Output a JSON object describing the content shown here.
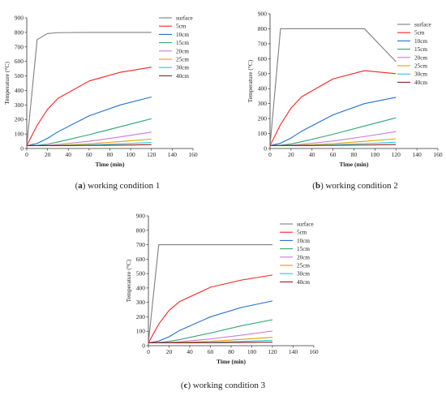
{
  "chart_data": [
    {
      "type": "line",
      "caption": {
        "letter": "a",
        "text": "working condition 1"
      },
      "xlabel": "Time (min)",
      "ylabel": "Temperature (°C)",
      "xlim": [
        0,
        160
      ],
      "ylim": [
        0,
        900
      ],
      "xticks": [
        0,
        20,
        40,
        60,
        80,
        100,
        120,
        140,
        160
      ],
      "yticks": [
        0,
        100,
        200,
        300,
        400,
        500,
        600,
        700,
        800,
        900
      ],
      "grid": false,
      "legend_position": "top-right",
      "series": [
        {
          "name": "surface",
          "color": "#7f7f7f",
          "x": [
            0,
            10,
            20,
            30,
            60,
            90,
            120
          ],
          "y": [
            20,
            750,
            792,
            798,
            800,
            800,
            800
          ]
        },
        {
          "name": "5cm",
          "color": "#ff2020",
          "x": [
            0,
            10,
            20,
            30,
            60,
            90,
            120
          ],
          "y": [
            20,
            160,
            270,
            345,
            465,
            525,
            560
          ]
        },
        {
          "name": "10cm",
          "color": "#1f6fd6",
          "x": [
            0,
            10,
            20,
            30,
            60,
            90,
            120
          ],
          "y": [
            20,
            35,
            70,
            115,
            225,
            300,
            355
          ]
        },
        {
          "name": "15cm",
          "color": "#2ca66f",
          "x": [
            0,
            10,
            20,
            30,
            60,
            90,
            120
          ],
          "y": [
            20,
            22,
            30,
            45,
            95,
            150,
            205
          ]
        },
        {
          "name": "20cm",
          "color": "#c97ad6",
          "x": [
            0,
            10,
            20,
            30,
            60,
            90,
            120
          ],
          "y": [
            20,
            20,
            22,
            28,
            50,
            80,
            113
          ]
        },
        {
          "name": "25cm",
          "color": "#e0a000",
          "x": [
            0,
            10,
            20,
            30,
            60,
            90,
            120
          ],
          "y": [
            20,
            20,
            20,
            22,
            32,
            48,
            65
          ]
        },
        {
          "name": "30cm",
          "color": "#20c8d8",
          "x": [
            0,
            10,
            20,
            30,
            60,
            90,
            120
          ],
          "y": [
            20,
            20,
            20,
            20,
            24,
            32,
            42
          ]
        },
        {
          "name": "40cm",
          "color": "#8b2020",
          "x": [
            0,
            10,
            20,
            30,
            60,
            90,
            120
          ],
          "y": [
            20,
            20,
            20,
            20,
            21,
            23,
            27
          ]
        }
      ]
    },
    {
      "type": "line",
      "caption": {
        "letter": "b",
        "text": "working condition 2"
      },
      "xlabel": "Time (min)",
      "ylabel": "Temperature (°C)",
      "xlim": [
        0,
        160
      ],
      "ylim": [
        0,
        900
      ],
      "xticks": [
        0,
        20,
        40,
        60,
        80,
        100,
        120,
        140,
        160
      ],
      "yticks": [
        0,
        100,
        200,
        300,
        400,
        500,
        600,
        700,
        800,
        900
      ],
      "grid": false,
      "legend_position": "top-right",
      "series": [
        {
          "name": "surface",
          "color": "#7f7f7f",
          "x": [
            0,
            10,
            20,
            60,
            90,
            120
          ],
          "y": [
            20,
            800,
            800,
            800,
            800,
            580
          ]
        },
        {
          "name": "5cm",
          "color": "#ff2020",
          "x": [
            0,
            10,
            20,
            30,
            60,
            90,
            120
          ],
          "y": [
            20,
            160,
            270,
            345,
            465,
            520,
            500
          ]
        },
        {
          "name": "10cm",
          "color": "#1f6fd6",
          "x": [
            0,
            10,
            20,
            30,
            60,
            90,
            120
          ],
          "y": [
            20,
            35,
            70,
            115,
            225,
            300,
            342
          ]
        },
        {
          "name": "15cm",
          "color": "#2ca66f",
          "x": [
            0,
            10,
            20,
            30,
            60,
            90,
            120
          ],
          "y": [
            20,
            22,
            30,
            45,
            95,
            150,
            205
          ]
        },
        {
          "name": "20cm",
          "color": "#c97ad6",
          "x": [
            0,
            10,
            20,
            30,
            60,
            90,
            120
          ],
          "y": [
            20,
            20,
            22,
            28,
            50,
            80,
            113
          ]
        },
        {
          "name": "25cm",
          "color": "#e0a000",
          "x": [
            0,
            10,
            20,
            30,
            60,
            90,
            120
          ],
          "y": [
            20,
            20,
            20,
            22,
            32,
            48,
            65
          ]
        },
        {
          "name": "30cm",
          "color": "#20c8d8",
          "x": [
            0,
            10,
            20,
            30,
            60,
            90,
            120
          ],
          "y": [
            20,
            20,
            20,
            20,
            24,
            32,
            42
          ]
        },
        {
          "name": "40cm",
          "color": "#8b2020",
          "x": [
            0,
            10,
            20,
            30,
            60,
            90,
            120
          ],
          "y": [
            20,
            20,
            20,
            20,
            21,
            23,
            27
          ]
        }
      ]
    },
    {
      "type": "line",
      "caption": {
        "letter": "c",
        "text": "working condition 3"
      },
      "xlabel": "Time (min)",
      "ylabel": "Temperature (°C)",
      "xlim": [
        0,
        160
      ],
      "ylim": [
        0,
        900
      ],
      "xticks": [
        0,
        20,
        40,
        60,
        80,
        100,
        120,
        140,
        160
      ],
      "yticks": [
        0,
        100,
        200,
        300,
        400,
        500,
        600,
        700,
        800,
        900
      ],
      "grid": false,
      "legend_position": "top-right",
      "series": [
        {
          "name": "surface",
          "color": "#7f7f7f",
          "x": [
            0,
            10,
            20,
            60,
            90,
            120
          ],
          "y": [
            20,
            700,
            700,
            700,
            700,
            700
          ]
        },
        {
          "name": "5cm",
          "color": "#ff2020",
          "x": [
            0,
            10,
            20,
            30,
            60,
            90,
            120
          ],
          "y": [
            20,
            150,
            245,
            305,
            405,
            455,
            490
          ]
        },
        {
          "name": "10cm",
          "color": "#1f6fd6",
          "x": [
            0,
            10,
            20,
            30,
            60,
            90,
            120
          ],
          "y": [
            20,
            32,
            62,
            105,
            200,
            265,
            310
          ]
        },
        {
          "name": "15cm",
          "color": "#2ca66f",
          "x": [
            0,
            10,
            20,
            30,
            60,
            90,
            120
          ],
          "y": [
            20,
            22,
            30,
            42,
            88,
            138,
            180
          ]
        },
        {
          "name": "20cm",
          "color": "#c97ad6",
          "x": [
            0,
            10,
            20,
            30,
            60,
            90,
            120
          ],
          "y": [
            20,
            20,
            22,
            27,
            47,
            73,
            102
          ]
        },
        {
          "name": "25cm",
          "color": "#e0a000",
          "x": [
            0,
            10,
            20,
            30,
            60,
            90,
            120
          ],
          "y": [
            20,
            20,
            20,
            22,
            30,
            44,
            58
          ]
        },
        {
          "name": "30cm",
          "color": "#20c8d8",
          "x": [
            0,
            10,
            20,
            30,
            60,
            90,
            120
          ],
          "y": [
            20,
            20,
            20,
            20,
            23,
            29,
            38
          ]
        },
        {
          "name": "40cm",
          "color": "#8b2020",
          "x": [
            0,
            10,
            20,
            30,
            60,
            90,
            120
          ],
          "y": [
            20,
            20,
            20,
            20,
            21,
            22,
            25
          ]
        }
      ]
    }
  ]
}
